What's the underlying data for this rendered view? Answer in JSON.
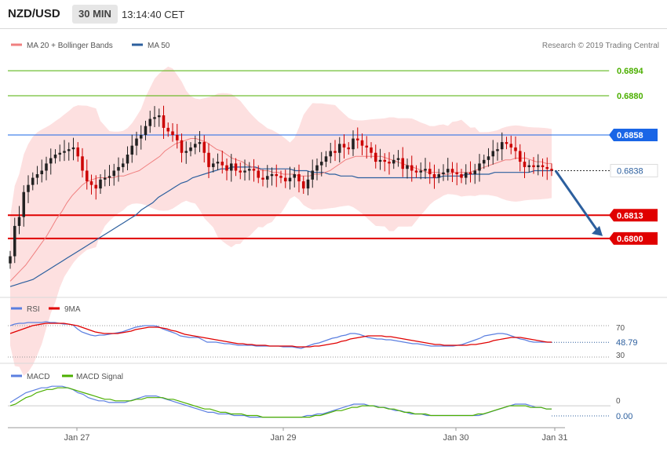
{
  "header": {
    "pair": "NZD/USD",
    "timeframe": "30 MIN",
    "time": "13:14:40 CET"
  },
  "price_legend": {
    "ma20_label": "MA 20 + Bollinger Bands",
    "ma50_label": "MA 50",
    "copyright": "Research © 2019 Trading Central"
  },
  "rsi_legend": {
    "rsi_label": "RSI",
    "ma_label": "9MA",
    "upper": "70",
    "lower": "30",
    "value": "48.79"
  },
  "macd_legend": {
    "macd_label": "MACD",
    "signal_label": "MACD Signal",
    "zero": "0",
    "value": "0.00"
  },
  "colors": {
    "up": "#222222",
    "down": "#cc0000",
    "ma20": "#f08080",
    "band": "#fde0e0",
    "ma50": "#2c5f9e",
    "support": "#e00000",
    "resistance_green": "#4caf00",
    "pivot_blue": "#1a66e6",
    "rsi": "#5b7fe0",
    "macd_signal": "#4caf00"
  },
  "chart_data": [
    {
      "type": "candlestick",
      "pane": "price",
      "x_labels": [
        "Jan 27",
        "Jan 29",
        "Jan 30",
        "Jan 31"
      ],
      "ylim": [
        0.677,
        0.6902
      ],
      "current_price": 0.6838,
      "levels": [
        {
          "value": 0.6894,
          "label": "0.6894",
          "kind": "resistance-green"
        },
        {
          "value": 0.688,
          "label": "0.6880",
          "kind": "resistance-green"
        },
        {
          "value": 0.6858,
          "label": "0.6858",
          "kind": "pivot"
        },
        {
          "value": 0.6813,
          "label": "0.6813",
          "kind": "support"
        },
        {
          "value": 0.68,
          "label": "0.6800",
          "kind": "support"
        }
      ],
      "closes": [
        0.679,
        0.6807,
        0.6812,
        0.6826,
        0.683,
        0.6834,
        0.6836,
        0.6838,
        0.6842,
        0.6845,
        0.6847,
        0.6848,
        0.6849,
        0.685,
        0.6851,
        0.6846,
        0.6838,
        0.6832,
        0.683,
        0.6828,
        0.6833,
        0.6834,
        0.6835,
        0.6838,
        0.684,
        0.6842,
        0.6847,
        0.6852,
        0.6856,
        0.6858,
        0.6863,
        0.6867,
        0.6868,
        0.6869,
        0.6862,
        0.686,
        0.6858,
        0.6855,
        0.6848,
        0.6849,
        0.6851,
        0.6853,
        0.6854,
        0.6848,
        0.684,
        0.6842,
        0.6843,
        0.6841,
        0.6838,
        0.6842,
        0.6838,
        0.6837,
        0.6838,
        0.6839,
        0.6838,
        0.6834,
        0.6833,
        0.6835,
        0.6836,
        0.6835,
        0.6834,
        0.6832,
        0.6834,
        0.6836,
        0.6832,
        0.6828,
        0.6833,
        0.6838,
        0.6841,
        0.6843,
        0.6846,
        0.6849,
        0.6848,
        0.6853,
        0.6851,
        0.685,
        0.6856,
        0.6855,
        0.6852,
        0.6851,
        0.6848,
        0.6843,
        0.6844,
        0.6843,
        0.6842,
        0.6844,
        0.6845,
        0.6839,
        0.6841,
        0.6838,
        0.6837,
        0.6838,
        0.6839,
        0.6836,
        0.6834,
        0.6836,
        0.6837,
        0.6839,
        0.6837,
        0.6836,
        0.6834,
        0.6837,
        0.6836,
        0.6838,
        0.6842,
        0.6844,
        0.6846,
        0.6849,
        0.685,
        0.6854,
        0.6853,
        0.6851,
        0.6849,
        0.6843,
        0.684,
        0.6841,
        0.684,
        0.6841,
        0.684,
        0.6839,
        0.6838
      ],
      "ma20": [
        0.6776,
        0.6779,
        0.6782,
        0.6785,
        0.6789,
        0.6793,
        0.6797,
        0.6801,
        0.6806,
        0.6811,
        0.6815,
        0.682,
        0.6824,
        0.6827,
        0.683,
        0.6832,
        0.6833,
        0.6834,
        0.6834,
        0.6834,
        0.6834,
        0.6835,
        0.6835,
        0.6836,
        0.6837,
        0.6838,
        0.684,
        0.6842,
        0.6844,
        0.6846,
        0.6849,
        0.6851,
        0.6853,
        0.6854,
        0.6855,
        0.6856,
        0.6856,
        0.6855,
        0.6854,
        0.6852,
        0.685,
        0.6849,
        0.6847,
        0.6845,
        0.6844,
        0.6843,
        0.6841,
        0.684,
        0.6839,
        0.6838,
        0.6838,
        0.6837,
        0.6837,
        0.6836,
        0.6836,
        0.6836,
        0.6835,
        0.6835,
        0.6835,
        0.6836,
        0.6836,
        0.6837,
        0.6838,
        0.684,
        0.6842,
        0.6844,
        0.6845,
        0.6846,
        0.6846,
        0.6846,
        0.6846,
        0.6846,
        0.6846,
        0.6845,
        0.6844,
        0.6843,
        0.6842,
        0.6841,
        0.684,
        0.6839,
        0.6838,
        0.6837,
        0.6837,
        0.6837,
        0.6836,
        0.6836,
        0.6837,
        0.6837,
        0.6837,
        0.6837,
        0.6838,
        0.6839,
        0.684,
        0.6841,
        0.6842,
        0.6843,
        0.6844,
        0.6844,
        0.6845,
        0.6845,
        0.6845,
        0.6844,
        0.6843,
        0.6843,
        0.6842,
        0.6842
      ],
      "ma50": [
        0.6773,
        0.6774,
        0.6775,
        0.6776,
        0.6777,
        0.6779,
        0.6781,
        0.6783,
        0.6785,
        0.6787,
        0.6789,
        0.6791,
        0.6793,
        0.6795,
        0.6797,
        0.6799,
        0.6801,
        0.6803,
        0.6805,
        0.6807,
        0.6809,
        0.6811,
        0.6813,
        0.6816,
        0.6818,
        0.682,
        0.6823,
        0.6825,
        0.6827,
        0.6829,
        0.6831,
        0.6832,
        0.6834,
        0.6835,
        0.6836,
        0.6837,
        0.6838,
        0.6839,
        0.6839,
        0.684,
        0.684,
        0.684,
        0.684,
        0.684,
        0.6839,
        0.6839,
        0.6839,
        0.6839,
        0.6839,
        0.6839,
        0.6838,
        0.6838,
        0.6838,
        0.6837,
        0.6837,
        0.6837,
        0.6836,
        0.6836,
        0.6835,
        0.6835,
        0.6835,
        0.6834,
        0.6834,
        0.6834,
        0.6834,
        0.6834,
        0.6834,
        0.6834,
        0.6834,
        0.6834,
        0.6834,
        0.6834,
        0.6834,
        0.6834,
        0.6834,
        0.6834,
        0.6835,
        0.6835,
        0.6835,
        0.6835,
        0.6836,
        0.6836,
        0.6836,
        0.6836,
        0.6836,
        0.6837,
        0.6837,
        0.6837,
        0.6837,
        0.6837,
        0.6837,
        0.6837,
        0.6838,
        0.6838,
        0.6838,
        0.6838
      ]
    },
    {
      "type": "line",
      "pane": "rsi",
      "ylim": [
        25,
        85
      ],
      "series": [
        {
          "name": "RSI",
          "values": [
            70,
            72,
            73,
            73,
            74,
            74,
            74,
            74,
            75,
            74,
            74,
            73,
            72,
            72,
            71,
            66,
            62,
            60,
            58,
            57,
            58,
            58,
            59,
            60,
            61,
            62,
            64,
            66,
            68,
            69,
            70,
            70,
            70,
            69,
            66,
            64,
            62,
            60,
            57,
            56,
            55,
            55,
            55,
            52,
            49,
            49,
            49,
            48,
            47,
            47,
            46,
            45,
            45,
            45,
            45,
            44,
            44,
            44,
            44,
            44,
            44,
            43,
            43,
            43,
            42,
            41,
            43,
            45,
            47,
            48,
            50,
            52,
            54,
            55,
            57,
            58,
            60,
            60,
            59,
            57,
            55,
            54,
            53,
            53,
            52,
            52,
            51,
            50,
            49,
            48,
            47,
            47,
            46,
            45,
            44,
            44,
            44,
            44,
            44,
            44,
            45,
            46,
            48,
            50,
            52,
            54,
            57,
            58,
            59,
            60,
            60,
            59,
            57,
            55,
            53,
            52,
            50,
            49,
            49,
            49,
            49,
            48.79
          ]
        },
        {
          "name": "9MA",
          "values": [
            60,
            62,
            64,
            66,
            68,
            70,
            71,
            72,
            73,
            73,
            73,
            73,
            73,
            72,
            71,
            70,
            68,
            66,
            64,
            62,
            61,
            60,
            60,
            60,
            60,
            61,
            62,
            63,
            65,
            66,
            67,
            68,
            68,
            68,
            67,
            66,
            64,
            63,
            61,
            59,
            58,
            57,
            56,
            55,
            54,
            53,
            52,
            51,
            50,
            49,
            48,
            47,
            47,
            46,
            46,
            45,
            45,
            45,
            44,
            44,
            44,
            44,
            44,
            44,
            43,
            43,
            43,
            43,
            44,
            44,
            45,
            46,
            47,
            48,
            50,
            51,
            53,
            54,
            55,
            56,
            57,
            57,
            57,
            57,
            56,
            56,
            55,
            54,
            53,
            52,
            51,
            50,
            49,
            48,
            47,
            46,
            46,
            45,
            45,
            45,
            45,
            45,
            45,
            46,
            46,
            47,
            48,
            49,
            51,
            52,
            53,
            54,
            55,
            55,
            55,
            54,
            53,
            52,
            51,
            50,
            49,
            49
          ]
        }
      ]
    },
    {
      "type": "line",
      "pane": "macd",
      "ylim": [
        -0.0012,
        0.0014
      ],
      "series": [
        {
          "name": "MACD",
          "values": [
            0.0002,
            0.0004,
            0.0006,
            0.0008,
            0.0009,
            0.001,
            0.0011,
            0.0011,
            0.0012,
            0.0012,
            0.0012,
            0.0011,
            0.001,
            0.0008,
            0.0007,
            0.0005,
            0.0004,
            0.0003,
            0.0003,
            0.0002,
            0.0002,
            0.0002,
            0.0002,
            0.0003,
            0.0004,
            0.0005,
            0.0006,
            0.0006,
            0.0006,
            0.0005,
            0.0004,
            0.0003,
            0.0002,
            0.0001,
            0.0,
            -0.0001,
            -0.0002,
            -0.0003,
            -0.0004,
            -0.0004,
            -0.0005,
            -0.0005,
            -0.0005,
            -0.0006,
            -0.0006,
            -0.0006,
            -0.0007,
            -0.0007,
            -0.0007,
            -0.0007,
            -0.0007,
            -0.0007,
            -0.0007,
            -0.0007,
            -0.0007,
            -0.0007,
            -0.0007,
            -0.0006,
            -0.0006,
            -0.0005,
            -0.0005,
            -0.0004,
            -0.0003,
            -0.0002,
            -0.0001,
            0.0,
            0.0001,
            0.0001,
            0.0001,
            0.0,
            0.0,
            -0.0001,
            -0.0001,
            -0.0002,
            -0.0003,
            -0.0003,
            -0.0004,
            -0.0005,
            -0.0005,
            -0.0005,
            -0.0006,
            -0.0006,
            -0.0006,
            -0.0006,
            -0.0006,
            -0.0006,
            -0.0006,
            -0.0006,
            -0.0006,
            -0.0006,
            -0.0006,
            -0.0005,
            -0.0004,
            -0.0003,
            -0.0002,
            -0.0001,
            0.0,
            0.0001,
            0.0001,
            0.0001,
            0.0,
            -0.0001,
            -0.0001,
            -0.0002,
            -0.0002
          ]
        },
        {
          "name": "MACD Signal",
          "values": [
            0.0,
            0.0001,
            0.0003,
            0.0005,
            0.0006,
            0.0008,
            0.0009,
            0.001,
            0.001,
            0.0011,
            0.0011,
            0.0011,
            0.001,
            0.0009,
            0.0008,
            0.0007,
            0.0006,
            0.0005,
            0.0004,
            0.0004,
            0.0003,
            0.0003,
            0.0003,
            0.0003,
            0.0004,
            0.0004,
            0.0005,
            0.0005,
            0.0005,
            0.0005,
            0.0004,
            0.0004,
            0.0003,
            0.0002,
            0.0001,
            0.0,
            -0.0001,
            -0.0002,
            -0.0002,
            -0.0003,
            -0.0004,
            -0.0004,
            -0.0005,
            -0.0005,
            -0.0005,
            -0.0006,
            -0.0006,
            -0.0006,
            -0.0007,
            -0.0007,
            -0.0007,
            -0.0007,
            -0.0007,
            -0.0007,
            -0.0007,
            -0.0007,
            -0.0007,
            -0.0007,
            -0.0006,
            -0.0006,
            -0.0005,
            -0.0004,
            -0.0003,
            -0.0003,
            -0.0002,
            -0.0001,
            -0.0001,
            0.0,
            0.0,
            0.0,
            -0.0001,
            -0.0001,
            -0.0002,
            -0.0002,
            -0.0003,
            -0.0004,
            -0.0004,
            -0.0005,
            -0.0005,
            -0.0005,
            -0.0006,
            -0.0006,
            -0.0006,
            -0.0006,
            -0.0006,
            -0.0006,
            -0.0006,
            -0.0006,
            -0.0006,
            -0.0005,
            -0.0005,
            -0.0004,
            -0.0003,
            -0.0002,
            -0.0001,
            0.0,
            0.0,
            0.0,
            0.0,
            -0.0001,
            -0.0001,
            -0.0001,
            -0.0002,
            -0.0002
          ]
        }
      ]
    }
  ]
}
